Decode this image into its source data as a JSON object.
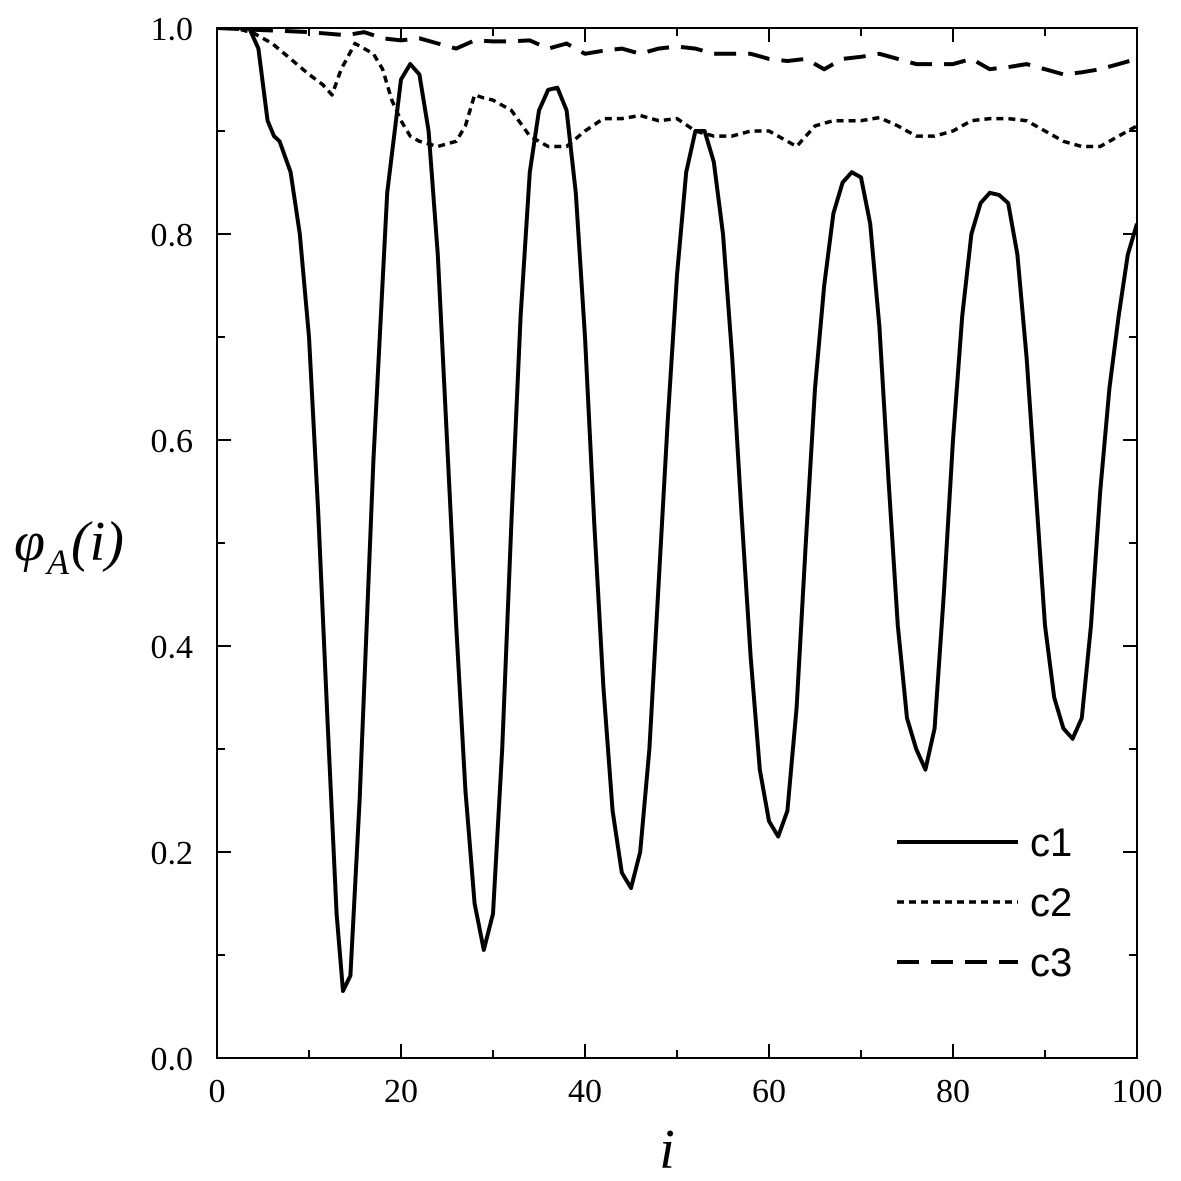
{
  "chart_data": {
    "type": "line",
    "title": "",
    "xlabel": "i",
    "ylabel": {
      "main": "φ",
      "sub": "A",
      "arg": "(i)"
    },
    "xlim": [
      0,
      100
    ],
    "ylim": [
      0.0,
      1.0
    ],
    "xticks": [
      0,
      20,
      40,
      60,
      80,
      100
    ],
    "xtick_labels": [
      "0",
      "20",
      "40",
      "60",
      "80",
      "100"
    ],
    "yticks": [
      0.0,
      0.2,
      0.4,
      0.6,
      0.8,
      1.0
    ],
    "ytick_labels": [
      "0.0",
      "0.2",
      "0.4",
      "0.6",
      "0.8",
      "1.0"
    ],
    "grid": false,
    "legend": "bottom-right",
    "series": [
      {
        "name": "c1",
        "style": "solid",
        "color": "#000000",
        "x": [
          0,
          2,
          3.5,
          4.5,
          5.5,
          6.2,
          6.8,
          8,
          9,
          10,
          11,
          12,
          13,
          13.7,
          14.5,
          15.5,
          17,
          18.5,
          20,
          21,
          22,
          23,
          24,
          25,
          26,
          27,
          28,
          29,
          30,
          31,
          32,
          33,
          34,
          35,
          36,
          37,
          38,
          39,
          40,
          41,
          42,
          43,
          44,
          45,
          46,
          47,
          48,
          49,
          50,
          51,
          52,
          53,
          54,
          55,
          56,
          57,
          58,
          59,
          60,
          61,
          62,
          63,
          64,
          65,
          66,
          67,
          68,
          69,
          70,
          71,
          72,
          73,
          74,
          75,
          76,
          77,
          78,
          79,
          80,
          81,
          82,
          83,
          84,
          85,
          86,
          87,
          88,
          89,
          90,
          91,
          92,
          93,
          94,
          95,
          96,
          97,
          98,
          99,
          100
        ],
        "y": [
          1.0,
          1.0,
          1.0,
          0.98,
          0.91,
          0.895,
          0.89,
          0.86,
          0.8,
          0.7,
          0.53,
          0.33,
          0.14,
          0.065,
          0.08,
          0.25,
          0.58,
          0.84,
          0.95,
          0.965,
          0.955,
          0.9,
          0.78,
          0.6,
          0.42,
          0.26,
          0.15,
          0.105,
          0.14,
          0.3,
          0.52,
          0.72,
          0.86,
          0.92,
          0.94,
          0.942,
          0.92,
          0.84,
          0.7,
          0.52,
          0.36,
          0.24,
          0.18,
          0.165,
          0.2,
          0.3,
          0.46,
          0.62,
          0.76,
          0.86,
          0.9,
          0.9,
          0.87,
          0.8,
          0.68,
          0.53,
          0.39,
          0.28,
          0.23,
          0.215,
          0.24,
          0.34,
          0.5,
          0.65,
          0.75,
          0.82,
          0.85,
          0.86,
          0.855,
          0.81,
          0.71,
          0.56,
          0.42,
          0.33,
          0.3,
          0.28,
          0.32,
          0.45,
          0.6,
          0.72,
          0.8,
          0.83,
          0.84,
          0.838,
          0.83,
          0.78,
          0.68,
          0.55,
          0.42,
          0.35,
          0.32,
          0.31,
          0.33,
          0.42,
          0.55,
          0.65,
          0.72,
          0.78,
          0.81
        ],
        "_note_y_range": "data values"
      },
      {
        "name": "c2",
        "style": "dotted",
        "color": "#000000",
        "x": [
          0,
          2,
          4,
          6,
          8,
          10,
          11.5,
          12.5,
          13.5,
          15,
          16,
          17,
          18,
          19,
          20,
          21,
          22,
          24,
          26,
          27,
          28,
          29,
          30,
          32,
          34,
          36,
          38,
          40,
          42,
          44,
          46,
          48,
          50,
          52,
          54,
          56,
          58,
          60,
          62,
          63,
          65,
          67,
          68,
          70,
          72,
          74,
          76,
          78,
          80,
          82,
          84,
          86,
          88,
          90,
          92,
          94,
          96,
          98,
          100
        ],
        "y": [
          1.0,
          1.0,
          0.995,
          0.985,
          0.97,
          0.955,
          0.945,
          0.935,
          0.96,
          0.985,
          0.98,
          0.975,
          0.96,
          0.93,
          0.91,
          0.895,
          0.89,
          0.885,
          0.89,
          0.905,
          0.935,
          0.932,
          0.93,
          0.92,
          0.895,
          0.885,
          0.885,
          0.9,
          0.912,
          0.912,
          0.915,
          0.91,
          0.912,
          0.9,
          0.895,
          0.895,
          0.9,
          0.9,
          0.89,
          0.885,
          0.905,
          0.91,
          0.91,
          0.91,
          0.913,
          0.905,
          0.895,
          0.895,
          0.9,
          0.91,
          0.912,
          0.912,
          0.91,
          0.9,
          0.89,
          0.885,
          0.885,
          0.895,
          0.905
        ]
      },
      {
        "name": "c3",
        "style": "dashed",
        "color": "#000000",
        "x": [
          0,
          5,
          10,
          14,
          16,
          18,
          20,
          22,
          24,
          26,
          28,
          30,
          32,
          34,
          36,
          38,
          40,
          42,
          44,
          46,
          48,
          50,
          52,
          54,
          56,
          58,
          60,
          62,
          64,
          66,
          68,
          70,
          72,
          74,
          76,
          78,
          80,
          82,
          84,
          86,
          88,
          90,
          92,
          94,
          96,
          98,
          100
        ],
        "y": [
          1.0,
          0.998,
          0.996,
          0.993,
          0.996,
          0.99,
          0.988,
          0.99,
          0.985,
          0.98,
          0.988,
          0.987,
          0.987,
          0.988,
          0.98,
          0.985,
          0.975,
          0.978,
          0.98,
          0.975,
          0.98,
          0.982,
          0.98,
          0.975,
          0.975,
          0.975,
          0.97,
          0.968,
          0.97,
          0.96,
          0.97,
          0.972,
          0.975,
          0.97,
          0.965,
          0.965,
          0.965,
          0.97,
          0.96,
          0.962,
          0.965,
          0.96,
          0.955,
          0.957,
          0.96,
          0.965,
          0.97
        ]
      }
    ]
  }
}
